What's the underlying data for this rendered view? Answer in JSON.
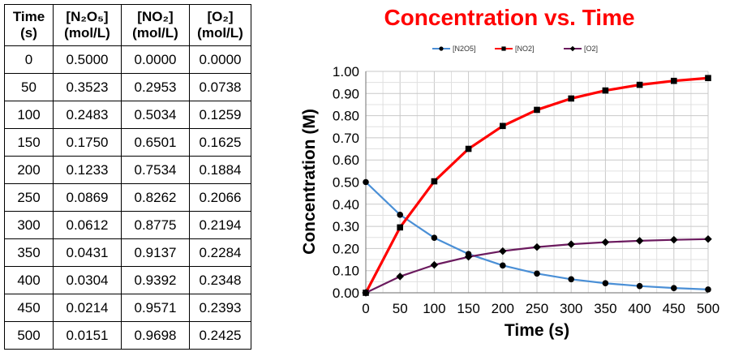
{
  "table": {
    "headers": [
      {
        "line1": "Time",
        "line2": "(s)"
      },
      {
        "line1": "[N₂O₅]",
        "line2": "(mol/L)"
      },
      {
        "line1": "[NO₂]",
        "line2": "(mol/L)"
      },
      {
        "line1": "[O₂]",
        "line2": "(mol/L)"
      }
    ],
    "rows": [
      [
        "0",
        "0.5000",
        "0.0000",
        "0.0000"
      ],
      [
        "50",
        "0.3523",
        "0.2953",
        "0.0738"
      ],
      [
        "100",
        "0.2483",
        "0.5034",
        "0.1259"
      ],
      [
        "150",
        "0.1750",
        "0.6501",
        "0.1625"
      ],
      [
        "200",
        "0.1233",
        "0.7534",
        "0.1884"
      ],
      [
        "250",
        "0.0869",
        "0.8262",
        "0.2066"
      ],
      [
        "300",
        "0.0612",
        "0.8775",
        "0.2194"
      ],
      [
        "350",
        "0.0431",
        "0.9137",
        "0.2284"
      ],
      [
        "400",
        "0.0304",
        "0.9392",
        "0.2348"
      ],
      [
        "450",
        "0.0214",
        "0.9571",
        "0.2393"
      ],
      [
        "500",
        "0.0151",
        "0.9698",
        "0.2425"
      ]
    ]
  },
  "chart_data": {
    "type": "line",
    "title": "Concentration vs. Time",
    "xlabel": "Time (s)",
    "ylabel": "Concentration (M)",
    "x": [
      0,
      50,
      100,
      150,
      200,
      250,
      300,
      350,
      400,
      450,
      500
    ],
    "xlim": [
      0,
      500
    ],
    "ylim": [
      0,
      1
    ],
    "x_ticks": [
      "0",
      "50",
      "100",
      "150",
      "200",
      "250",
      "300",
      "350",
      "400",
      "450",
      "500"
    ],
    "y_ticks": [
      "0.00",
      "0.10",
      "0.20",
      "0.30",
      "0.40",
      "0.50",
      "0.60",
      "0.70",
      "0.80",
      "0.90",
      "1.00"
    ],
    "grid": true,
    "legend_position": "top",
    "series": [
      {
        "name": "[N2O5]",
        "color": "#4a8fd6",
        "marker": "circle",
        "values": [
          0.5,
          0.3523,
          0.2483,
          0.175,
          0.1233,
          0.0869,
          0.0612,
          0.0431,
          0.0304,
          0.0214,
          0.0151
        ]
      },
      {
        "name": "[NO2]",
        "color": "#ff0000",
        "marker": "square",
        "values": [
          0.0,
          0.2953,
          0.5034,
          0.6501,
          0.7534,
          0.8262,
          0.8775,
          0.9137,
          0.9392,
          0.9571,
          0.9698
        ]
      },
      {
        "name": "[O2]",
        "color": "#6b1a5e",
        "marker": "diamond",
        "values": [
          0.0,
          0.0738,
          0.1259,
          0.1625,
          0.1884,
          0.2066,
          0.2194,
          0.2284,
          0.2348,
          0.2393,
          0.2425
        ]
      }
    ]
  }
}
